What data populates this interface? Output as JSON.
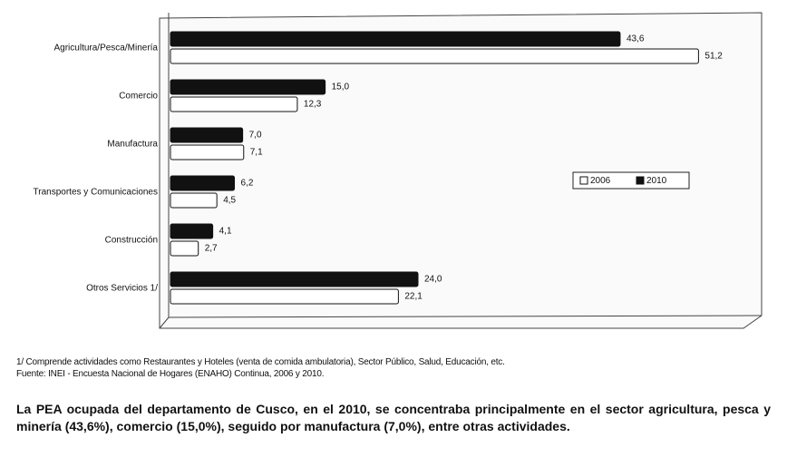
{
  "chart_data": {
    "type": "hbar",
    "categories": [
      "Agricultura/Pesca/Minería",
      "Comercio",
      "Manufactura",
      "Transportes y Comunicaciones",
      "Construcción",
      "Otros Servicios 1/"
    ],
    "series": [
      {
        "name": "2006",
        "color": "#ffffff",
        "values": [
          51.2,
          12.3,
          7.1,
          4.5,
          2.7,
          22.1
        ],
        "value_labels": [
          "51,2",
          "12,3",
          "7,1",
          "4,5",
          "2,7",
          "22,1"
        ]
      },
      {
        "name": "2010",
        "color": "#111111",
        "values": [
          43.6,
          15.0,
          7.0,
          6.2,
          4.1,
          24.0
        ],
        "value_labels": [
          "43,6",
          "15,0",
          "7,0",
          "6,2",
          "4,1",
          "24,0"
        ]
      }
    ],
    "xlim": [
      0,
      56
    ],
    "legend": "right",
    "footnote": "1/ Comprende actividades como Restaurantes y Hoteles (venta de comida ambulatoria), Sector Público, Salud, Educación, etc.",
    "source": "Fuente: INEI - Encuesta Nacional de Hogares (ENAHO) Continua, 2006 y 2010.",
    "text": "La PEA ocupada del departamento de Cusco, en el 2010, se concentraba principalmente en el sector agricultura, pesca y minería (43,6%), comercio (15,0%), seguido por manufactura (7,0%), entre otras actividades."
  }
}
